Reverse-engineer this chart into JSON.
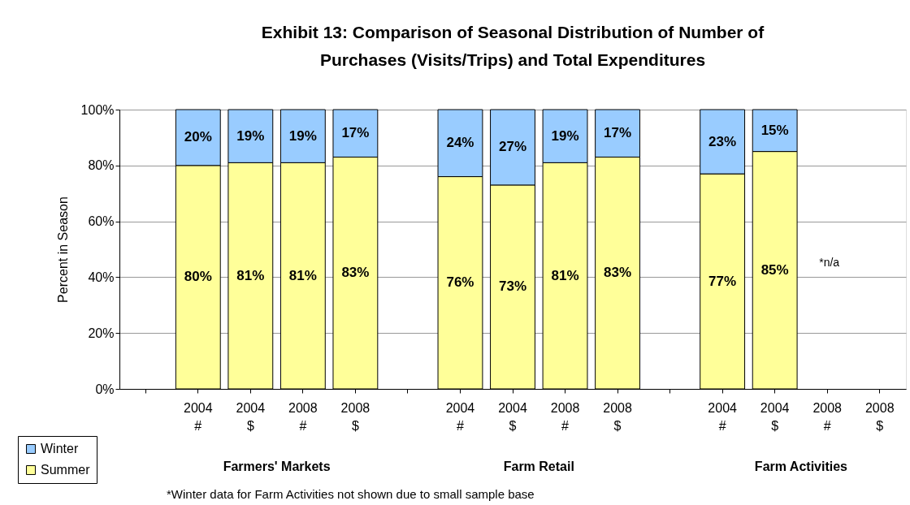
{
  "chart_data": {
    "type": "bar",
    "stacked": true,
    "title": "Exhibit 13: Comparison of Seasonal Distribution of Number of Purchases (Visits/Trips) and Total Expenditures",
    "ylabel": "Percent in Season",
    "categories": [
      null,
      "2004 #",
      "2004 $",
      "2008 #",
      "2008 $",
      null,
      "2004 #",
      "2004 $",
      "2008 #",
      "2008 $",
      null,
      "2004 #",
      "2004 $",
      "2008 #",
      "2008 $"
    ],
    "series": [
      {
        "name": "Summer",
        "color": "#ffff99",
        "values": [
          null,
          80,
          81,
          81,
          83,
          null,
          76,
          73,
          81,
          83,
          null,
          77,
          85,
          null,
          null
        ],
        "value_labels": [
          null,
          "80%",
          "81%",
          "81%",
          "83%",
          null,
          "76%",
          "73%",
          "81%",
          "83%",
          null,
          "77%",
          "85%",
          null,
          null
        ]
      },
      {
        "name": "Winter",
        "color": "#99ccff",
        "values": [
          null,
          20,
          19,
          19,
          17,
          null,
          24,
          27,
          19,
          17,
          null,
          23,
          15,
          null,
          null
        ],
        "value_labels": [
          null,
          "20%",
          "19%",
          "19%",
          "17%",
          null,
          "24%",
          "27%",
          "19%",
          "17%",
          null,
          "23%",
          "15%",
          null,
          null
        ]
      }
    ],
    "ylim": [
      0,
      100
    ],
    "yticks": [
      {
        "value": 0,
        "label": "0%"
      },
      {
        "value": 20,
        "label": "20%"
      },
      {
        "value": 40,
        "label": "40%"
      },
      {
        "value": 60,
        "label": "60%"
      },
      {
        "value": 80,
        "label": "80%"
      },
      {
        "value": 100,
        "label": "100%"
      }
    ],
    "grid": "y",
    "legend": "bottom left",
    "annotations": [
      "Farmers' Markets",
      "Farm Retail",
      "Farm Activities",
      "*n/a",
      "*Winter data for Farm Activities not shown due to small sample base"
    ]
  }
}
